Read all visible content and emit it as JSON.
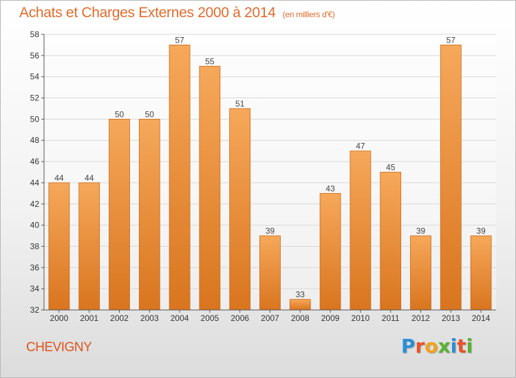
{
  "title": "Achats et Charges Externes 2000 à 2014",
  "subtitle": "(en milliers d'€)",
  "location": "CHEVIGNY",
  "logo": {
    "letters": [
      "P",
      "r",
      "o",
      "x",
      "i",
      "t",
      "i"
    ],
    "colors": [
      "#2a8fd6",
      "#e8532a",
      "#f2a21b",
      "#5ab031",
      "#2a8fd6",
      "#e8532a",
      "#5ab031"
    ]
  },
  "colors": {
    "bar_light": "#f6a85a",
    "bar_dark": "#d9751f",
    "bar_edge": "#c86a1a",
    "accent": "#e06c2c"
  },
  "chart_data": {
    "type": "bar",
    "categories": [
      "2000",
      "2001",
      "2002",
      "2003",
      "2004",
      "2005",
      "2006",
      "2007",
      "2008",
      "2009",
      "2010",
      "2011",
      "2012",
      "2013",
      "2014"
    ],
    "values": [
      44,
      44,
      50,
      50,
      57,
      55,
      51,
      39,
      33,
      43,
      47,
      45,
      39,
      57,
      39
    ],
    "data_labels": [
      "44",
      "44",
      "50",
      "50",
      "57",
      "55",
      "51",
      "39",
      "33",
      "43",
      "47",
      "45",
      "39",
      "57",
      "39"
    ],
    "yticks": [
      32,
      34,
      36,
      38,
      40,
      42,
      44,
      46,
      48,
      50,
      52,
      54,
      56,
      58
    ],
    "ylim": [
      32,
      58
    ],
    "grid": true,
    "legend": "none",
    "xlabel": "",
    "ylabel": ""
  }
}
